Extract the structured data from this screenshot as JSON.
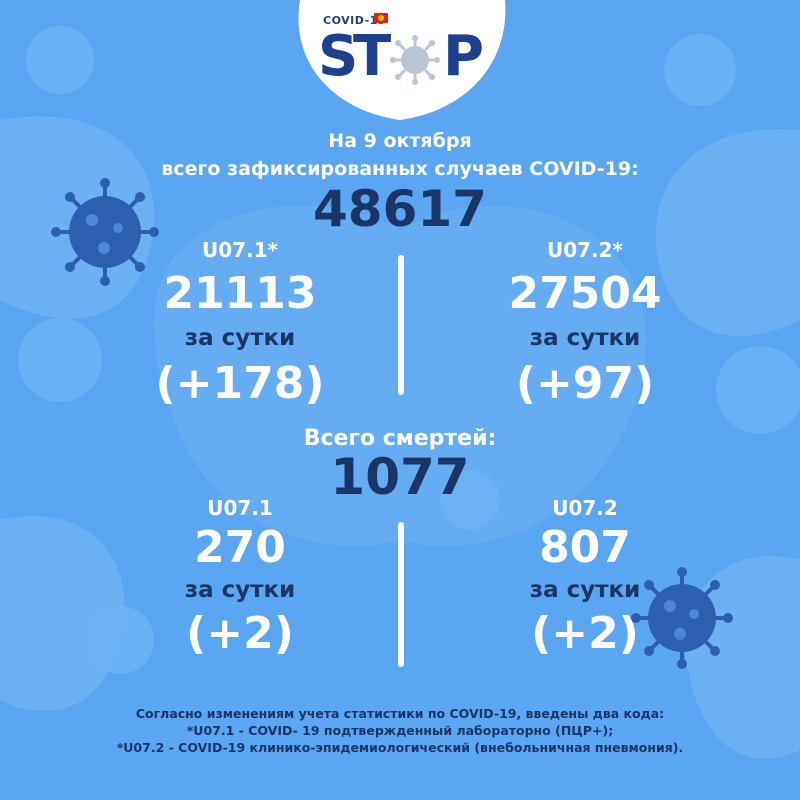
{
  "logo": {
    "small_text": "COVID-19",
    "letter_s": "S",
    "letter_t": "T",
    "letter_p": "P"
  },
  "header": {
    "date_line": "На 9 октября",
    "total_label": "всего зафиксированных случаев COVID-19:",
    "total_value": "48617"
  },
  "cases": {
    "left": {
      "code": "U07.1*",
      "value": "21113",
      "per_day_label": "за сутки",
      "per_day_value": "(+178)"
    },
    "right": {
      "code": "U07.2*",
      "value": "27504",
      "per_day_label": "за сутки",
      "per_day_value": "(+97)"
    }
  },
  "deaths": {
    "label": "Всего смертей:",
    "total_value": "1077",
    "left": {
      "code": "U07.1",
      "value": "270",
      "per_day_label": "за сутки",
      "per_day_value": "(+2)"
    },
    "right": {
      "code": "U07.2",
      "value": "807",
      "per_day_label": "за сутки",
      "per_day_value": "(+2)"
    }
  },
  "footnote": {
    "line1": "Согласно изменениям учета статистики по COVID-19, введены два кода:",
    "line2": "*U07.1 - COVID- 19 подтвержденный лабораторно (ПЦР+);",
    "line3": "*U07.2 - COVID-19 клинико-эпидемиологический (внебольничная пневмония)."
  },
  "colors": {
    "background": "#5aa6f2",
    "blob": "#6cb1f4",
    "dark_text": "#1a3566",
    "logo_blue": "#1f3f8f",
    "flag_red": "#e02020"
  },
  "icons": [
    "virus-icon",
    "flag-icon"
  ]
}
